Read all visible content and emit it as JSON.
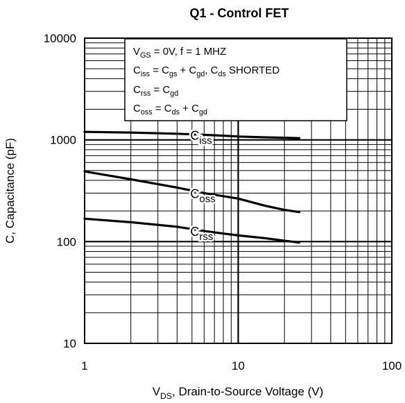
{
  "chart_data": {
    "type": "line",
    "title": "Q1 - Control FET",
    "xscale": "log",
    "yscale": "log",
    "xlim": [
      1,
      100
    ],
    "ylim": [
      10,
      10000
    ],
    "grid": true,
    "xticks": [
      "1",
      "10",
      "100"
    ],
    "yticks": [
      "10",
      "100",
      "1000",
      "10000"
    ],
    "xlabel": {
      "main": "V",
      "sub": "DS",
      "rest": ", Drain-to-Source Voltage (V)"
    },
    "ylabel": "C, Capacitance (pF)",
    "conditions": {
      "line1": {
        "a": "V",
        "a_sub": "GS",
        "b": " = 0V,      f = 1 MHZ"
      },
      "line2": {
        "a": "C",
        "a_sub": "iss",
        "b": " = C",
        "b_sub": "gs",
        "c": " + C",
        "c_sub": "gd",
        "d": ",  C",
        "d_sub": "ds",
        "e": " SHORTED"
      },
      "line3": {
        "a": "C",
        "a_sub": "rss",
        "b": " = C",
        "b_sub": "gd"
      },
      "line4": {
        "a": "C",
        "a_sub": "oss",
        "b": " = C",
        "b_sub": "ds",
        "c": " + C",
        "c_sub": "gd"
      }
    },
    "series": [
      {
        "name": "Ciss",
        "label_main": "C",
        "label_sub": "iss",
        "x": [
          1,
          2,
          4,
          6,
          8,
          10,
          15,
          20,
          25
        ],
        "y": [
          1200,
          1180,
          1150,
          1120,
          1100,
          1080,
          1060,
          1050,
          1040
        ]
      },
      {
        "name": "Coss",
        "label_main": "C",
        "label_sub": "oss",
        "x": [
          1,
          2,
          4,
          6,
          8,
          10,
          15,
          20,
          25
        ],
        "y": [
          490,
          410,
          340,
          300,
          280,
          265,
          225,
          205,
          195
        ]
      },
      {
        "name": "Crss",
        "label_main": "C",
        "label_sub": "rss",
        "x": [
          1,
          2,
          4,
          6,
          8,
          10,
          15,
          20,
          25
        ],
        "y": [
          168,
          155,
          140,
          127,
          120,
          115,
          108,
          102,
          98
        ]
      }
    ]
  }
}
